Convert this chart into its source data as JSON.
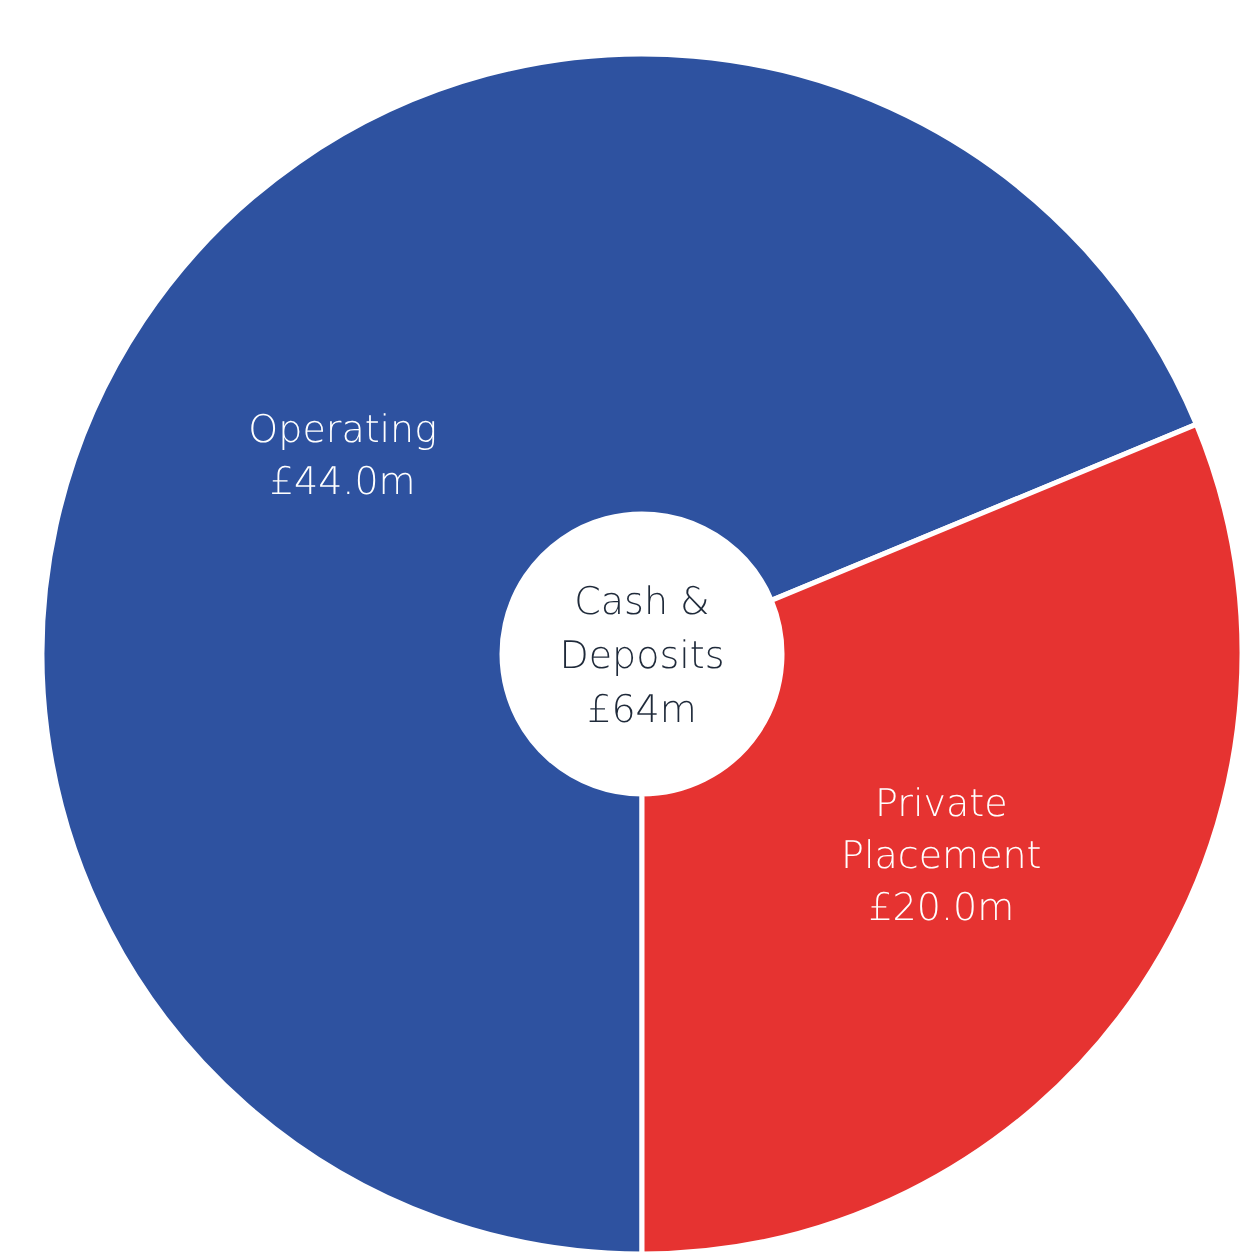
{
  "chart_data": {
    "type": "donut",
    "title": "Cash &\nDeposits\n£64m",
    "categories": [
      "Operating",
      "Private Placement"
    ],
    "values": [
      44.0,
      20.0
    ],
    "value_labels": [
      "£44.0m",
      "£20.0m"
    ],
    "colors": [
      "#2e52a0",
      "#e63331"
    ]
  }
}
